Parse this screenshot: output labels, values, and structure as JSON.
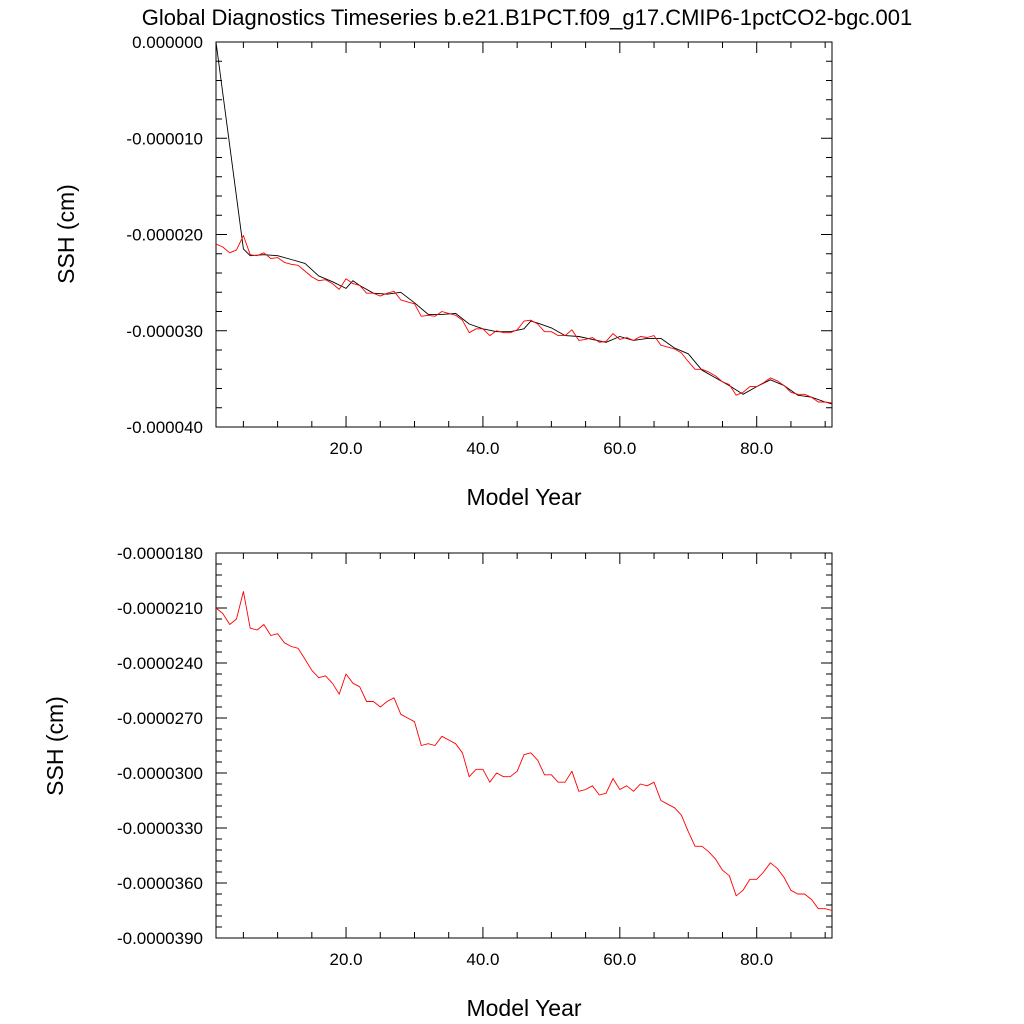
{
  "page": {
    "title": "Global Diagnostics Timeseries b.e21.B1PCT.f09_g17.CMIP6-1pctCO2-bgc.001"
  },
  "chart_data": [
    {
      "type": "line",
      "panel": "top",
      "xlabel": "Model Year",
      "ylabel": "SSH (cm)",
      "xlim": [
        1,
        91
      ],
      "ylim": [
        -4e-05,
        0.0
      ],
      "x_ticks": [
        20,
        40,
        60,
        80
      ],
      "x_tick_labels": [
        "20.0",
        "40.0",
        "60.0",
        "80.0"
      ],
      "y_ticks": [
        0.0,
        -1e-05,
        -2e-05,
        -3e-05,
        -4e-05
      ],
      "y_tick_labels": [
        "0.000000",
        "-0.000010",
        "-0.000020",
        "-0.000030",
        "-0.000040"
      ],
      "grid": false,
      "series": [
        {
          "color": "#000000",
          "x": [
            1,
            5,
            6,
            8,
            10,
            12,
            14,
            16,
            18,
            20,
            21,
            22,
            24,
            26,
            28,
            30,
            32,
            34,
            36,
            38,
            40,
            42,
            44,
            46,
            47,
            48,
            50,
            52,
            54,
            56,
            58,
            60,
            62,
            64,
            66,
            68,
            70,
            72,
            74,
            76,
            78,
            80,
            82,
            84,
            86,
            88,
            90,
            91
          ],
          "values": [
            0.0,
            -2.15e-05,
            -2.22e-05,
            -2.21e-05,
            -2.22e-05,
            -2.26e-05,
            -2.3e-05,
            -2.43e-05,
            -2.49e-05,
            -2.56e-05,
            -2.48e-05,
            -2.53e-05,
            -2.61e-05,
            -2.62e-05,
            -2.6e-05,
            -2.71e-05,
            -2.83e-05,
            -2.83e-05,
            -2.82e-05,
            -2.93e-05,
            -2.98e-05,
            -3.01e-05,
            -3.01e-05,
            -2.98e-05,
            -2.9e-05,
            -2.92e-05,
            -2.97e-05,
            -3.05e-05,
            -3.06e-05,
            -3.09e-05,
            -3.12e-05,
            -3.06e-05,
            -3.1e-05,
            -3.08e-05,
            -3.08e-05,
            -3.18e-05,
            -3.24e-05,
            -3.41e-05,
            -3.49e-05,
            -3.57e-05,
            -3.66e-05,
            -3.58e-05,
            -3.51e-05,
            -3.57e-05,
            -3.67e-05,
            -3.69e-05,
            -3.74e-05,
            -3.76e-05
          ]
        },
        {
          "color": "#ff0000",
          "x": [
            1,
            2,
            3,
            4,
            5,
            6,
            7,
            8,
            9,
            10,
            11,
            12,
            13,
            14,
            15,
            16,
            17,
            18,
            19,
            20,
            21,
            22,
            23,
            24,
            25,
            26,
            27,
            28,
            29,
            30,
            31,
            32,
            33,
            34,
            35,
            36,
            37,
            38,
            39,
            40,
            41,
            42,
            43,
            44,
            45,
            46,
            47,
            48,
            49,
            50,
            51,
            52,
            53,
            54,
            55,
            56,
            57,
            58,
            59,
            60,
            61,
            62,
            63,
            64,
            65,
            66,
            67,
            68,
            69,
            70,
            71,
            72,
            73,
            74,
            75,
            76,
            77,
            78,
            79,
            80,
            81,
            82,
            83,
            84,
            85,
            86,
            87,
            88,
            89,
            90,
            91
          ],
          "values": [
            -2.1e-05,
            -2.13e-05,
            -2.19e-05,
            -2.16e-05,
            -2.01e-05,
            -2.21e-05,
            -2.22e-05,
            -2.19e-05,
            -2.25e-05,
            -2.24e-05,
            -2.29e-05,
            -2.31e-05,
            -2.32e-05,
            -2.38e-05,
            -2.44e-05,
            -2.48e-05,
            -2.47e-05,
            -2.51e-05,
            -2.57e-05,
            -2.46e-05,
            -2.51e-05,
            -2.53e-05,
            -2.61e-05,
            -2.61e-05,
            -2.64e-05,
            -2.61e-05,
            -2.59e-05,
            -2.68e-05,
            -2.7e-05,
            -2.72e-05,
            -2.85e-05,
            -2.84e-05,
            -2.85e-05,
            -2.8e-05,
            -2.82e-05,
            -2.84e-05,
            -2.89e-05,
            -3.02e-05,
            -2.98e-05,
            -2.98e-05,
            -3.05e-05,
            -3e-05,
            -3.02e-05,
            -3.02e-05,
            -2.99e-05,
            -2.9e-05,
            -2.89e-05,
            -2.93e-05,
            -3.01e-05,
            -3.01e-05,
            -3.05e-05,
            -3.05e-05,
            -2.99e-05,
            -3.1e-05,
            -3.09e-05,
            -3.07e-05,
            -3.12e-05,
            -3.11e-05,
            -3.03e-05,
            -3.09e-05,
            -3.07e-05,
            -3.1e-05,
            -3.06e-05,
            -3.07e-05,
            -3.05e-05,
            -3.15e-05,
            -3.17e-05,
            -3.19e-05,
            -3.23e-05,
            -3.32e-05,
            -3.4e-05,
            -3.4e-05,
            -3.43e-05,
            -3.47e-05,
            -3.53e-05,
            -3.56e-05,
            -3.67e-05,
            -3.64e-05,
            -3.58e-05,
            -3.58e-05,
            -3.54e-05,
            -3.49e-05,
            -3.52e-05,
            -3.57e-05,
            -3.64e-05,
            -3.66e-05,
            -3.66e-05,
            -3.69e-05,
            -3.74e-05,
            -3.74e-05,
            -3.75e-05
          ]
        }
      ]
    },
    {
      "type": "line",
      "panel": "bottom",
      "xlabel": "Model Year",
      "ylabel": "SSH (cm)",
      "xlim": [
        1,
        91
      ],
      "ylim": [
        -3.9e-05,
        -1.8e-05
      ],
      "x_ticks": [
        20,
        40,
        60,
        80
      ],
      "x_tick_labels": [
        "20.0",
        "40.0",
        "60.0",
        "80.0"
      ],
      "y_ticks": [
        -1.8e-05,
        -2.1e-05,
        -2.4e-05,
        -2.7e-05,
        -3e-05,
        -3.3e-05,
        -3.6e-05,
        -3.9e-05
      ],
      "y_tick_labels": [
        "-0.0000180",
        "-0.0000210",
        "-0.0000240",
        "-0.0000270",
        "-0.0000300",
        "-0.0000330",
        "-0.0000360",
        "-0.0000390"
      ],
      "grid": false,
      "series": [
        {
          "color": "#ff0000",
          "x": [
            1,
            2,
            3,
            4,
            5,
            6,
            7,
            8,
            9,
            10,
            11,
            12,
            13,
            14,
            15,
            16,
            17,
            18,
            19,
            20,
            21,
            22,
            23,
            24,
            25,
            26,
            27,
            28,
            29,
            30,
            31,
            32,
            33,
            34,
            35,
            36,
            37,
            38,
            39,
            40,
            41,
            42,
            43,
            44,
            45,
            46,
            47,
            48,
            49,
            50,
            51,
            52,
            53,
            54,
            55,
            56,
            57,
            58,
            59,
            60,
            61,
            62,
            63,
            64,
            65,
            66,
            67,
            68,
            69,
            70,
            71,
            72,
            73,
            74,
            75,
            76,
            77,
            78,
            79,
            80,
            81,
            82,
            83,
            84,
            85,
            86,
            87,
            88,
            89,
            90,
            91
          ],
          "values": [
            -2.1e-05,
            -2.13e-05,
            -2.19e-05,
            -2.16e-05,
            -2.01e-05,
            -2.21e-05,
            -2.22e-05,
            -2.19e-05,
            -2.25e-05,
            -2.24e-05,
            -2.29e-05,
            -2.31e-05,
            -2.32e-05,
            -2.38e-05,
            -2.44e-05,
            -2.48e-05,
            -2.47e-05,
            -2.51e-05,
            -2.57e-05,
            -2.46e-05,
            -2.51e-05,
            -2.53e-05,
            -2.61e-05,
            -2.61e-05,
            -2.64e-05,
            -2.61e-05,
            -2.59e-05,
            -2.68e-05,
            -2.7e-05,
            -2.72e-05,
            -2.85e-05,
            -2.84e-05,
            -2.85e-05,
            -2.8e-05,
            -2.82e-05,
            -2.84e-05,
            -2.89e-05,
            -3.02e-05,
            -2.98e-05,
            -2.98e-05,
            -3.05e-05,
            -3e-05,
            -3.02e-05,
            -3.02e-05,
            -2.99e-05,
            -2.9e-05,
            -2.89e-05,
            -2.93e-05,
            -3.01e-05,
            -3.01e-05,
            -3.05e-05,
            -3.05e-05,
            -2.99e-05,
            -3.1e-05,
            -3.09e-05,
            -3.07e-05,
            -3.12e-05,
            -3.11e-05,
            -3.03e-05,
            -3.09e-05,
            -3.07e-05,
            -3.1e-05,
            -3.06e-05,
            -3.07e-05,
            -3.05e-05,
            -3.15e-05,
            -3.17e-05,
            -3.19e-05,
            -3.23e-05,
            -3.32e-05,
            -3.4e-05,
            -3.4e-05,
            -3.43e-05,
            -3.47e-05,
            -3.53e-05,
            -3.56e-05,
            -3.67e-05,
            -3.64e-05,
            -3.58e-05,
            -3.58e-05,
            -3.54e-05,
            -3.49e-05,
            -3.52e-05,
            -3.57e-05,
            -3.64e-05,
            -3.66e-05,
            -3.66e-05,
            -3.69e-05,
            -3.74e-05,
            -3.74e-05,
            -3.75e-05
          ]
        }
      ]
    }
  ]
}
